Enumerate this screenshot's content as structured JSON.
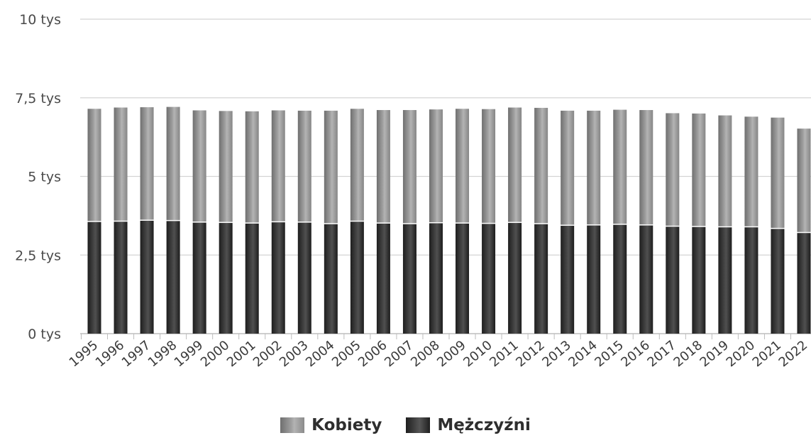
{
  "chart_data": {
    "type": "bar",
    "stacked": true,
    "categories": [
      "1995",
      "1996",
      "1997",
      "1998",
      "1999",
      "2000",
      "2001",
      "2002",
      "2003",
      "2004",
      "2005",
      "2006",
      "2007",
      "2008",
      "2009",
      "2010",
      "2011",
      "2012",
      "2013",
      "2014",
      "2015",
      "2016",
      "2017",
      "2018",
      "2019",
      "2020",
      "2021",
      "2022"
    ],
    "series": [
      {
        "name": "Mężczyźni",
        "color": "#2a2a2a",
        "values": [
          3550,
          3560,
          3590,
          3580,
          3530,
          3520,
          3500,
          3540,
          3530,
          3480,
          3560,
          3500,
          3480,
          3510,
          3500,
          3490,
          3520,
          3480,
          3430,
          3440,
          3460,
          3440,
          3400,
          3390,
          3380,
          3380,
          3330,
          3200
        ]
      },
      {
        "name": "Kobiety",
        "color": "#8e8e8e",
        "values": [
          3600,
          3630,
          3610,
          3630,
          3570,
          3560,
          3570,
          3560,
          3560,
          3610,
          3590,
          3610,
          3630,
          3620,
          3650,
          3650,
          3670,
          3700,
          3660,
          3650,
          3660,
          3670,
          3610,
          3610,
          3560,
          3520,
          3540,
          3320
        ]
      }
    ],
    "y_ticks": [
      {
        "value": 0,
        "label": "0 tys"
      },
      {
        "value": 2500,
        "label": "2,5 tys"
      },
      {
        "value": 5000,
        "label": "5 tys"
      },
      {
        "value": 7500,
        "label": "7,5 tys"
      },
      {
        "value": 10000,
        "label": "10 tys"
      }
    ],
    "ylim": [
      0,
      10000
    ],
    "grid": true,
    "legend_position": "bottom"
  },
  "legend": {
    "items": [
      {
        "label": "Kobiety",
        "color": "#8e8e8e"
      },
      {
        "label": "Mężczyźni",
        "color": "#2a2a2a"
      }
    ]
  }
}
